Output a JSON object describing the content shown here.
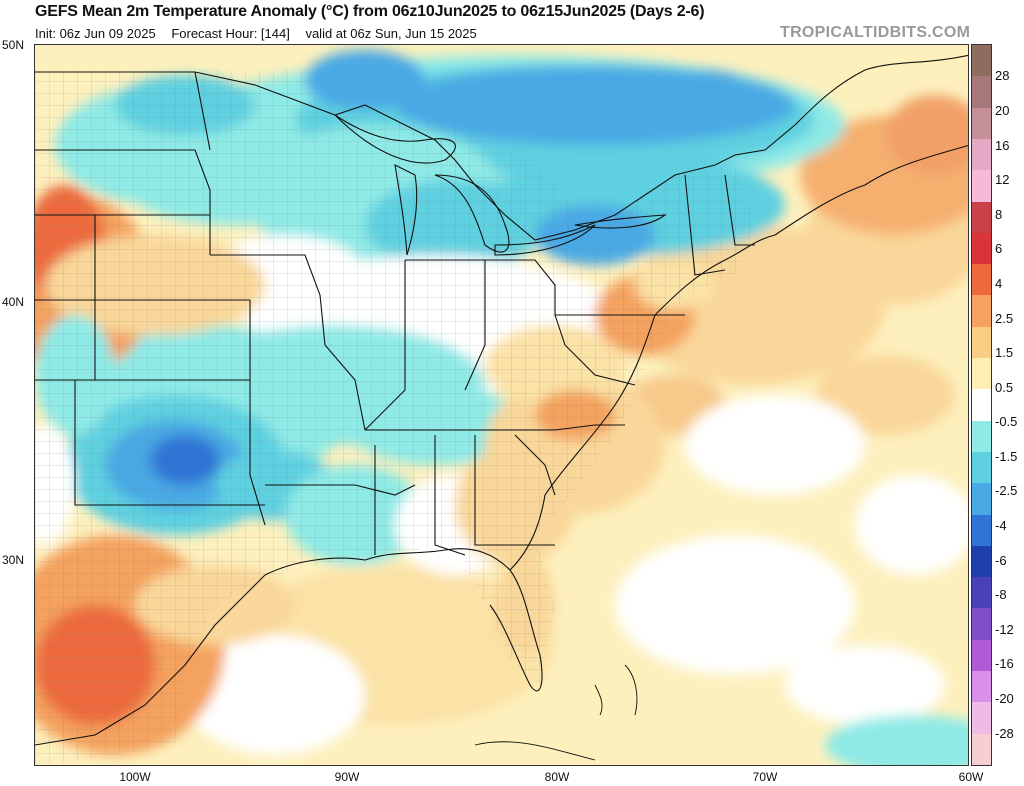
{
  "header": {
    "title": "GEFS Mean 2m Temperature Anomaly (°C) from 06z10Jun2025 to 06z15Jun2025 (Days 2-6)",
    "init": "Init: 06z Jun 09 2025",
    "forecast_hour": "Forecast Hour: [144]",
    "valid": "valid at 06z Sun, Jun 15 2025",
    "brand": "TROPICALTIDBITS.COM"
  },
  "map": {
    "lat_labels": [
      "50N",
      "40N",
      "30N"
    ],
    "lon_labels": [
      "100W",
      "90W",
      "80W",
      "70W",
      "60W"
    ]
  },
  "colorbar": {
    "levels": [
      "28",
      "20",
      "16",
      "12",
      "8",
      "6",
      "4",
      "2.5",
      "1.5",
      "0.5",
      "-0.5",
      "-1.5",
      "-2.5",
      "-4",
      "-6",
      "-8",
      "-12",
      "-16",
      "-20",
      "-28"
    ],
    "colors": [
      "#8c6d5e",
      "#a7787a",
      "#c58f98",
      "#e4a9c4",
      "#f6b9d9",
      "#c9424a",
      "#d8343a",
      "#ec6a3c",
      "#f4a25e",
      "#f8cd84",
      "#fdeeb4",
      "#ffffff",
      "#8feae6",
      "#5fd0e0",
      "#4aa9e4",
      "#2f74d6",
      "#1f3fae",
      "#4a41b8",
      "#7d4ec8",
      "#b05ad6",
      "#d890e8",
      "#eebae6",
      "#f6cfd2"
    ]
  }
}
